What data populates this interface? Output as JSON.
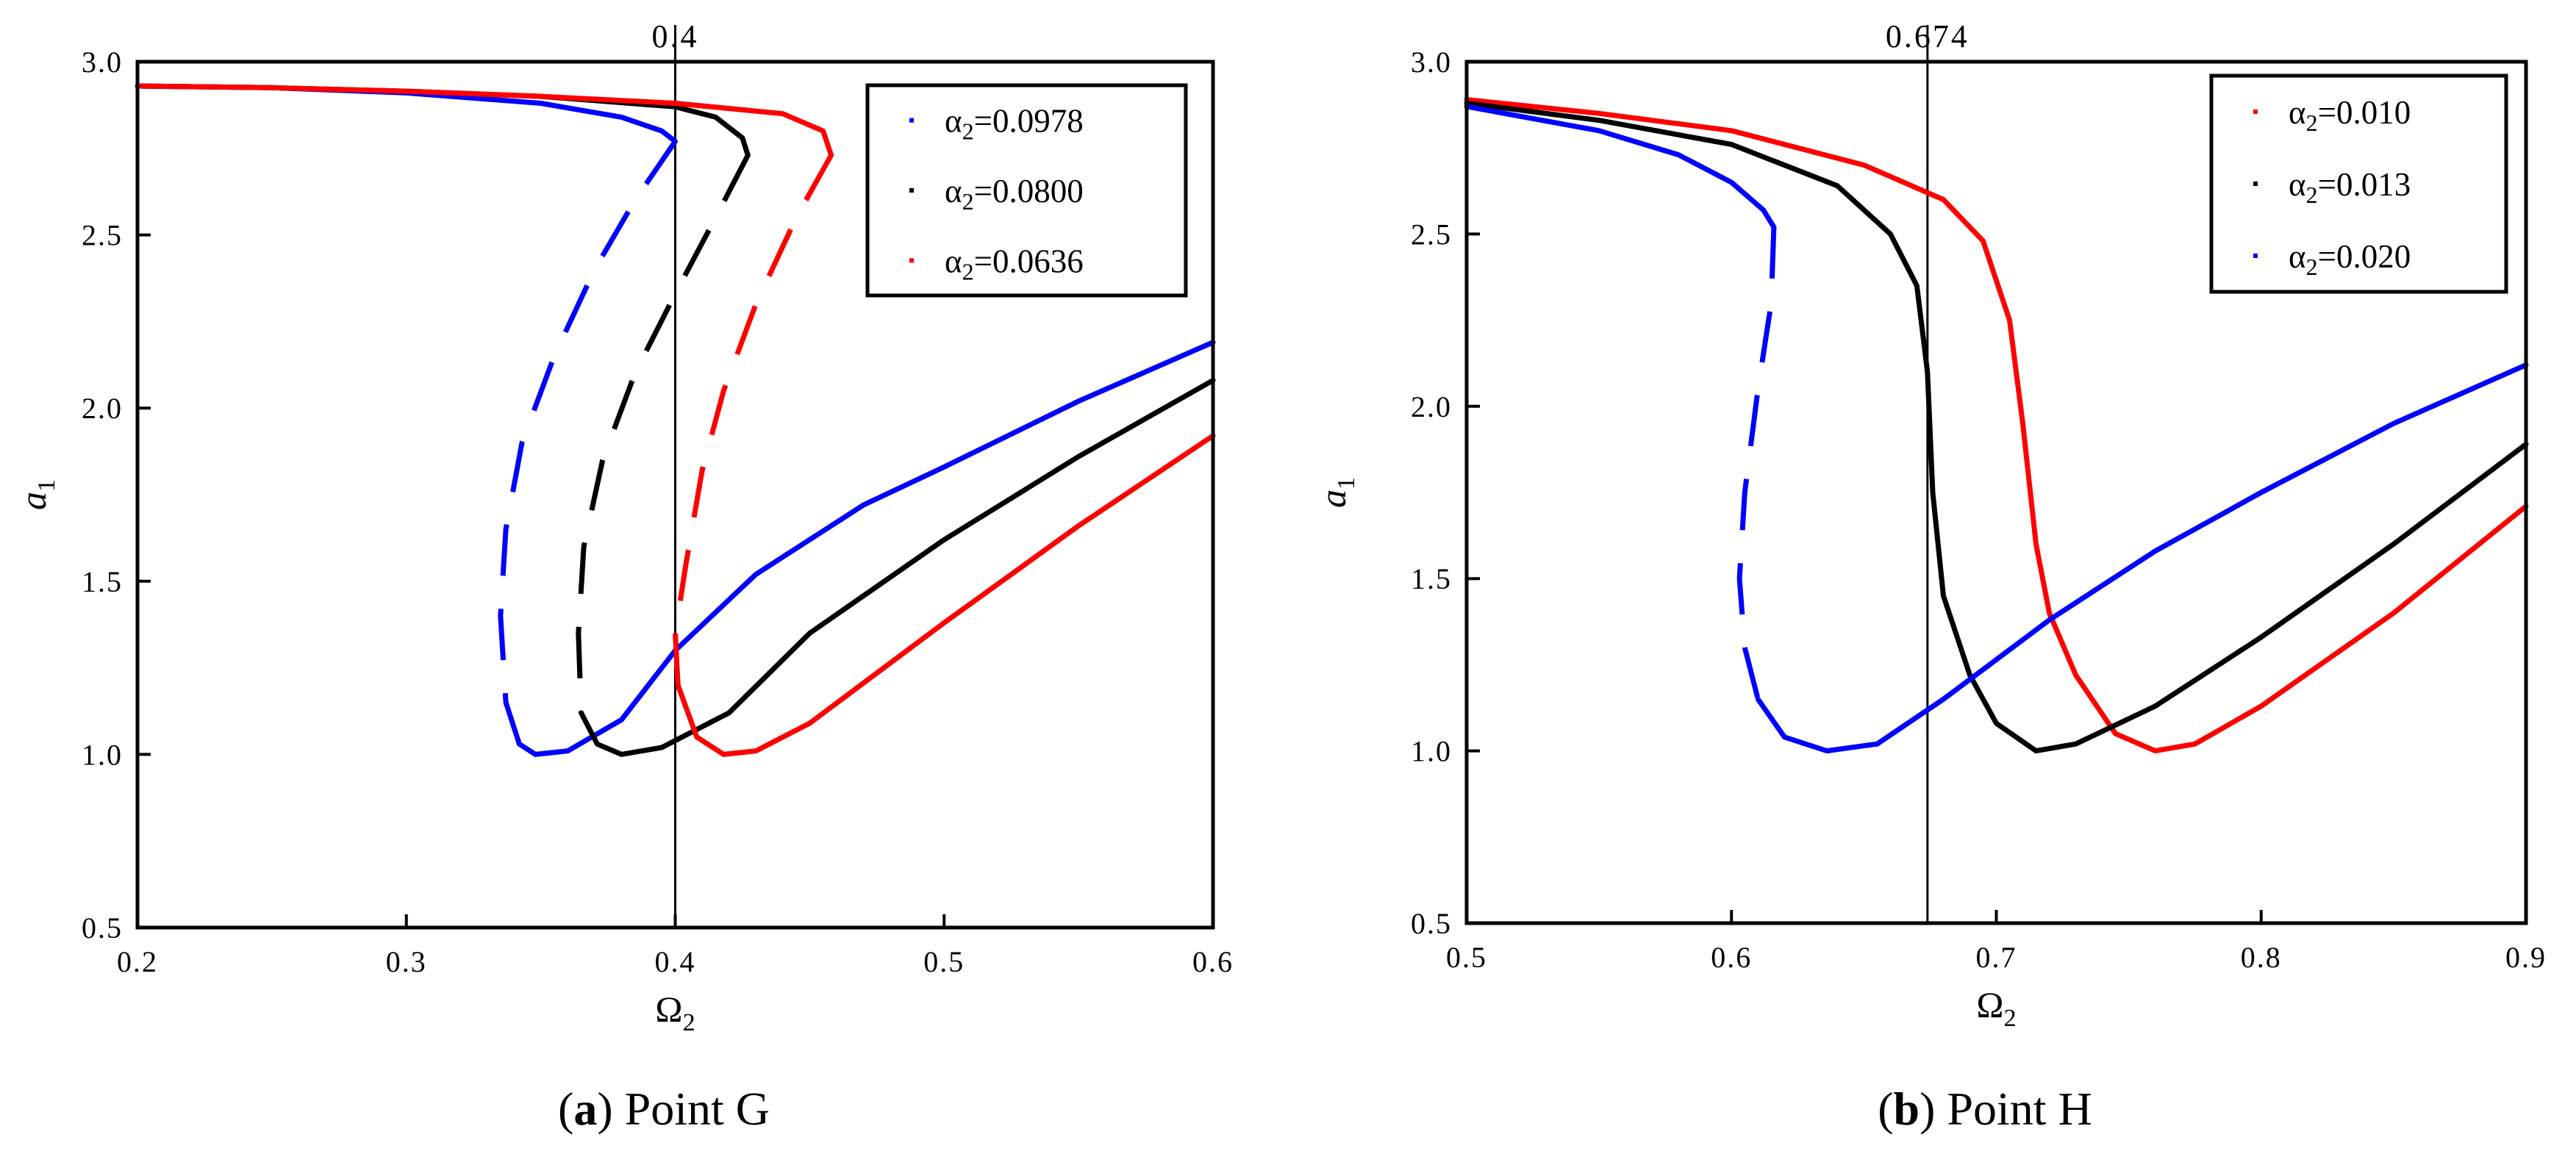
{
  "chart_data": [
    {
      "type": "line",
      "panel_label": "a",
      "caption": "Point G",
      "xlabel": "Ω",
      "xlabel_sub": "2",
      "ylabel": "a",
      "ylabel_sub": "1",
      "xlim": [
        0.2,
        0.6
      ],
      "ylim": [
        0.5,
        3.0
      ],
      "xticks": [
        0.2,
        0.3,
        0.4,
        0.5,
        0.6
      ],
      "xtick_labels": [
        "0.2",
        "0.3",
        "0.4",
        "0.5",
        "0.6"
      ],
      "yticks": [
        0.5,
        1.0,
        1.5,
        2.0,
        2.5,
        3.0
      ],
      "ytick_labels": [
        "0.5",
        "1.0",
        "1.5",
        "2.0",
        "2.5",
        "3.0"
      ],
      "reference_line": {
        "x": 0.4,
        "label": "0.4"
      },
      "legend_position": "top-right",
      "series": [
        {
          "name": "α",
          "name_sub": "2",
          "value_label": "=0.0978",
          "color": "#0000ff",
          "upper": [
            [
              0.2,
              2.93
            ],
            [
              0.25,
              2.925
            ],
            [
              0.3,
              2.91
            ],
            [
              0.35,
              2.88
            ],
            [
              0.38,
              2.84
            ],
            [
              0.395,
              2.8
            ],
            [
              0.4,
              2.77
            ]
          ],
          "unstable": [
            [
              0.4,
              2.77
            ],
            [
              0.385,
              2.6
            ],
            [
              0.37,
              2.4
            ],
            [
              0.355,
              2.15
            ],
            [
              0.343,
              1.9
            ],
            [
              0.337,
              1.65
            ],
            [
              0.335,
              1.4
            ],
            [
              0.337,
              1.15
            ]
          ],
          "lower": [
            [
              0.337,
              1.15
            ],
            [
              0.342,
              1.03
            ],
            [
              0.348,
              1.0
            ],
            [
              0.36,
              1.01
            ],
            [
              0.38,
              1.1
            ],
            [
              0.4,
              1.3
            ],
            [
              0.43,
              1.52
            ],
            [
              0.47,
              1.72
            ],
            [
              0.5,
              1.83
            ],
            [
              0.55,
              2.02
            ],
            [
              0.6,
              2.19
            ]
          ]
        },
        {
          "name": "α",
          "name_sub": "2",
          "value_label": "=0.0800",
          "color": "#000000",
          "upper": [
            [
              0.2,
              2.93
            ],
            [
              0.25,
              2.925
            ],
            [
              0.3,
              2.915
            ],
            [
              0.35,
              2.9
            ],
            [
              0.4,
              2.87
            ],
            [
              0.415,
              2.84
            ],
            [
              0.425,
              2.78
            ],
            [
              0.427,
              2.73
            ]
          ],
          "unstable": [
            [
              0.427,
              2.73
            ],
            [
              0.415,
              2.55
            ],
            [
              0.4,
              2.33
            ],
            [
              0.385,
              2.1
            ],
            [
              0.373,
              1.85
            ],
            [
              0.366,
              1.6
            ],
            [
              0.364,
              1.35
            ],
            [
              0.365,
              1.12
            ]
          ],
          "lower": [
            [
              0.365,
              1.12
            ],
            [
              0.371,
              1.03
            ],
            [
              0.38,
              1.0
            ],
            [
              0.395,
              1.02
            ],
            [
              0.42,
              1.12
            ],
            [
              0.45,
              1.35
            ],
            [
              0.5,
              1.62
            ],
            [
              0.55,
              1.86
            ],
            [
              0.6,
              2.08
            ]
          ]
        },
        {
          "name": "α",
          "name_sub": "2",
          "value_label": "=0.0636",
          "color": "#ff0000",
          "upper": [
            [
              0.2,
              2.93
            ],
            [
              0.25,
              2.925
            ],
            [
              0.3,
              2.915
            ],
            [
              0.35,
              2.9
            ],
            [
              0.4,
              2.88
            ],
            [
              0.44,
              2.85
            ],
            [
              0.455,
              2.8
            ],
            [
              0.458,
              2.73
            ]
          ],
          "unstable": [
            [
              0.458,
              2.73
            ],
            [
              0.445,
              2.55
            ],
            [
              0.43,
              2.3
            ],
            [
              0.418,
              2.05
            ],
            [
              0.41,
              1.82
            ],
            [
              0.404,
              1.55
            ],
            [
              0.4,
              1.35
            ],
            [
              0.401,
              1.2
            ]
          ],
          "lower": [
            [
              0.401,
              1.2
            ],
            [
              0.408,
              1.05
            ],
            [
              0.418,
              1.0
            ],
            [
              0.43,
              1.01
            ],
            [
              0.45,
              1.09
            ],
            [
              0.5,
              1.38
            ],
            [
              0.55,
              1.66
            ],
            [
              0.6,
              1.92
            ]
          ]
        }
      ]
    },
    {
      "type": "line",
      "panel_label": "b",
      "caption": "Point H",
      "xlabel": "Ω",
      "xlabel_sub": "2",
      "ylabel": "a",
      "ylabel_sub": "1",
      "xlim": [
        0.5,
        0.9
      ],
      "ylim": [
        0.5,
        3.0
      ],
      "xticks": [
        0.5,
        0.6,
        0.7,
        0.8,
        0.9
      ],
      "xtick_labels": [
        "0.5",
        "0.6",
        "0.7",
        "0.8",
        "0.9"
      ],
      "yticks": [
        0.5,
        1.0,
        1.5,
        2.0,
        2.5,
        3.0
      ],
      "ytick_labels": [
        "0.5",
        "1.0",
        "1.5",
        "2.0",
        "2.5",
        "3.0"
      ],
      "reference_line": {
        "x": 0.674,
        "label": "0.674"
      },
      "legend_position": "top-right",
      "series": [
        {
          "name": "α",
          "name_sub": "2",
          "value_label": "=0.010",
          "color": "#ff0000",
          "upper": [
            [
              0.5,
              2.89
            ],
            [
              0.55,
              2.85
            ],
            [
              0.6,
              2.8
            ],
            [
              0.65,
              2.7
            ],
            [
              0.68,
              2.6
            ],
            [
              0.695,
              2.48
            ],
            [
              0.705,
              2.25
            ],
            [
              0.71,
              1.95
            ],
            [
              0.715,
              1.6
            ],
            [
              0.72,
              1.4
            ],
            [
              0.73,
              1.22
            ],
            [
              0.745,
              1.05
            ],
            [
              0.76,
              1.0
            ],
            [
              0.775,
              1.02
            ],
            [
              0.8,
              1.13
            ],
            [
              0.85,
              1.4
            ],
            [
              0.9,
              1.71
            ]
          ]
        },
        {
          "name": "α",
          "name_sub": "2",
          "value_label": "=0.013",
          "color": "#000000",
          "upper": [
            [
              0.5,
              2.88
            ],
            [
              0.55,
              2.83
            ],
            [
              0.6,
              2.76
            ],
            [
              0.64,
              2.64
            ],
            [
              0.66,
              2.5
            ],
            [
              0.67,
              2.35
            ],
            [
              0.674,
              2.1
            ],
            [
              0.676,
              1.75
            ],
            [
              0.68,
              1.45
            ],
            [
              0.69,
              1.22
            ],
            [
              0.7,
              1.08
            ],
            [
              0.715,
              1.0
            ],
            [
              0.73,
              1.02
            ],
            [
              0.76,
              1.13
            ],
            [
              0.8,
              1.33
            ],
            [
              0.85,
              1.6
            ],
            [
              0.9,
              1.89
            ]
          ]
        },
        {
          "name": "α",
          "name_sub": "2",
          "value_label": "=0.020",
          "color": "#0000ff",
          "upper": [
            [
              0.5,
              2.87
            ],
            [
              0.55,
              2.8
            ],
            [
              0.58,
              2.73
            ],
            [
              0.6,
              2.65
            ],
            [
              0.612,
              2.57
            ],
            [
              0.616,
              2.52
            ]
          ],
          "unstable": [
            [
              0.616,
              2.52
            ],
            [
              0.615,
              2.3
            ],
            [
              0.61,
              2.05
            ],
            [
              0.605,
              1.75
            ],
            [
              0.603,
              1.5
            ],
            [
              0.605,
              1.3
            ],
            [
              0.61,
              1.15
            ]
          ],
          "lower": [
            [
              0.61,
              1.15
            ],
            [
              0.62,
              1.04
            ],
            [
              0.636,
              1.0
            ],
            [
              0.655,
              1.02
            ],
            [
              0.68,
              1.15
            ],
            [
              0.72,
              1.38
            ],
            [
              0.76,
              1.58
            ],
            [
              0.8,
              1.75
            ],
            [
              0.85,
              1.95
            ],
            [
              0.9,
              2.12
            ]
          ]
        }
      ]
    }
  ]
}
